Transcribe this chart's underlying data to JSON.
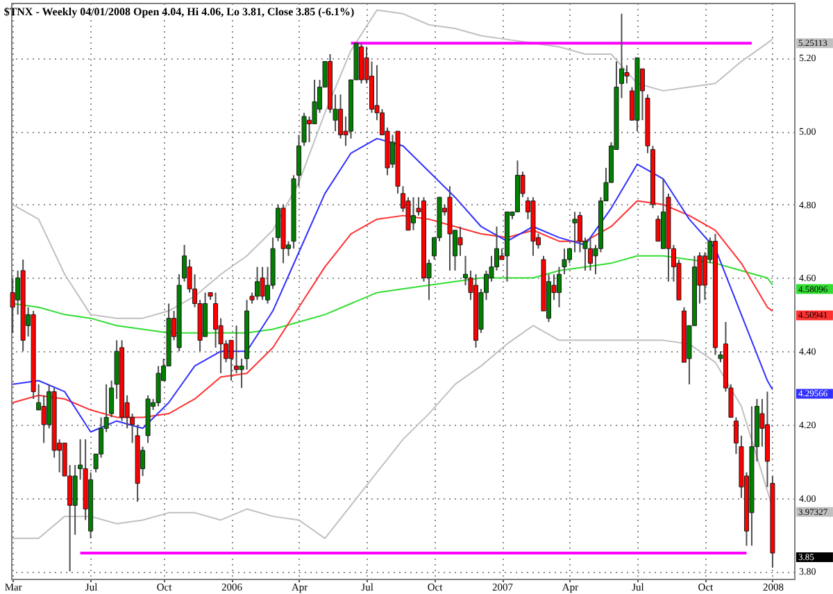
{
  "chart_data": {
    "type": "candlestick",
    "title": "$TNX - Weekly 04/01/2008 Open 4.04, Hi 4.06, Lo 3.81, Close 3.85 (-6.1%)",
    "series": [
      {
        "type": "line",
        "color": "#c0c0c0",
        "x": [
          "2005-03-18",
          "2005-04-22",
          "2005-05-27",
          "2005-07-01",
          "2005-08-05",
          "2005-09-09",
          "2005-10-14",
          "2005-11-18",
          "2005-12-23",
          "2006-01-27",
          "2006-03-03",
          "2006-04-07",
          "2006-05-12",
          "2006-06-16",
          "2006-07-21",
          "2006-08-25",
          "2006-09-29",
          "2006-11-03",
          "2006-12-08",
          "2007-01-12",
          "2007-02-16",
          "2007-03-23",
          "2007-04-27",
          "2007-06-01",
          "2007-07-06",
          "2007-08-10",
          "2007-09-14",
          "2007-10-19",
          "2007-11-23",
          "2007-12-28",
          "2008-01-04"
        ],
        "values": [
          4.8,
          4.76,
          4.61,
          4.5,
          4.49,
          4.49,
          4.51,
          4.55,
          4.61,
          4.66,
          4.73,
          4.86,
          5.05,
          5.22,
          5.33,
          5.32,
          5.29,
          5.28,
          5.26,
          5.25,
          5.24,
          5.23,
          5.21,
          5.21,
          5.13,
          5.11,
          5.12,
          5.13,
          5.19,
          5.24,
          5.25113
        ]
      },
      {
        "type": "line",
        "color": "#c0c0c0",
        "x": [
          "2005-03-18",
          "2005-04-22",
          "2005-05-27",
          "2005-07-01",
          "2005-08-05",
          "2005-09-09",
          "2005-10-14",
          "2005-11-18",
          "2005-12-23",
          "2006-01-27",
          "2006-03-03",
          "2006-04-07",
          "2006-05-12",
          "2006-06-16",
          "2006-07-21",
          "2006-08-25",
          "2006-09-29",
          "2006-11-03",
          "2006-12-08",
          "2007-01-12",
          "2007-02-16",
          "2007-03-23",
          "2007-04-27",
          "2007-06-01",
          "2007-07-06",
          "2007-08-10",
          "2007-09-14",
          "2007-10-19",
          "2007-11-23",
          "2007-12-28",
          "2008-01-04"
        ],
        "values": [
          3.89,
          3.89,
          3.95,
          3.95,
          3.93,
          3.94,
          3.96,
          3.96,
          3.94,
          3.97,
          3.95,
          3.94,
          3.89,
          3.98,
          4.07,
          4.16,
          4.23,
          4.31,
          4.36,
          4.42,
          4.47,
          4.43,
          4.43,
          4.43,
          4.43,
          4.43,
          4.42,
          4.37,
          4.25,
          4.02,
          3.97327
        ]
      },
      {
        "type": "line",
        "color": "#30dd30",
        "x": [
          "2005-03-18",
          "2005-04-22",
          "2005-05-27",
          "2005-07-01",
          "2005-08-05",
          "2005-09-09",
          "2005-10-14",
          "2005-11-18",
          "2005-12-23",
          "2006-01-27",
          "2006-03-03",
          "2006-04-07",
          "2006-05-12",
          "2006-06-16",
          "2006-07-21",
          "2006-08-25",
          "2006-09-29",
          "2006-11-03",
          "2006-12-08",
          "2007-01-12",
          "2007-02-16",
          "2007-03-23",
          "2007-04-27",
          "2007-06-01",
          "2007-07-06",
          "2007-08-10",
          "2007-09-14",
          "2007-10-19",
          "2007-11-23",
          "2007-12-28",
          "2008-01-04"
        ],
        "values": [
          4.53,
          4.52,
          4.5,
          4.49,
          4.47,
          4.46,
          4.45,
          4.45,
          4.45,
          4.45,
          4.46,
          4.48,
          4.5,
          4.53,
          4.56,
          4.57,
          4.58,
          4.59,
          4.6,
          4.6,
          4.6,
          4.62,
          4.63,
          4.64,
          4.66,
          4.66,
          4.65,
          4.64,
          4.62,
          4.6,
          4.58096
        ]
      },
      {
        "type": "line",
        "color": "#ff3030",
        "x": [
          "2005-03-18",
          "2005-04-22",
          "2005-05-27",
          "2005-07-01",
          "2005-08-05",
          "2005-09-09",
          "2005-10-14",
          "2005-11-18",
          "2005-12-23",
          "2006-01-27",
          "2006-03-03",
          "2006-04-07",
          "2006-05-12",
          "2006-06-16",
          "2006-07-21",
          "2006-08-25",
          "2006-09-29",
          "2006-11-03",
          "2006-12-08",
          "2007-01-12",
          "2007-02-16",
          "2007-03-23",
          "2007-04-27",
          "2007-06-01",
          "2007-07-06",
          "2007-08-10",
          "2007-09-14",
          "2007-10-19",
          "2007-11-23",
          "2007-12-28",
          "2008-01-04"
        ],
        "values": [
          4.26,
          4.28,
          4.27,
          4.24,
          4.22,
          4.22,
          4.23,
          4.27,
          4.33,
          4.34,
          4.41,
          4.52,
          4.63,
          4.72,
          4.76,
          4.77,
          4.76,
          4.74,
          4.72,
          4.71,
          4.73,
          4.7,
          4.7,
          4.74,
          4.81,
          4.8,
          4.77,
          4.73,
          4.64,
          4.52,
          4.50941
        ]
      },
      {
        "type": "line",
        "color": "#3030ff",
        "x": [
          "2005-03-18",
          "2005-04-22",
          "2005-05-27",
          "2005-07-01",
          "2005-08-05",
          "2005-09-09",
          "2005-10-14",
          "2005-11-18",
          "2005-12-23",
          "2006-01-27",
          "2006-03-03",
          "2006-04-07",
          "2006-05-12",
          "2006-06-16",
          "2006-07-21",
          "2006-08-25",
          "2006-09-29",
          "2006-11-03",
          "2006-12-08",
          "2007-01-12",
          "2007-02-16",
          "2007-03-23",
          "2007-04-27",
          "2007-06-01",
          "2007-07-06",
          "2007-08-10",
          "2007-09-14",
          "2007-10-19",
          "2007-11-23",
          "2007-12-28",
          "2008-01-04"
        ],
        "values": [
          4.31,
          4.32,
          4.29,
          4.18,
          4.21,
          4.19,
          4.26,
          4.36,
          4.4,
          4.4,
          4.51,
          4.67,
          4.83,
          4.94,
          4.98,
          4.96,
          4.89,
          4.82,
          4.74,
          4.7,
          4.74,
          4.71,
          4.69,
          4.79,
          4.91,
          4.87,
          4.76,
          4.68,
          4.5,
          4.32,
          4.29566
        ]
      },
      {
        "type": "line",
        "color": "#ff00ff",
        "x": [
          "2006-06-16",
          "2007-12-07"
        ],
        "values": [
          5.24,
          5.24
        ]
      },
      {
        "type": "line",
        "color": "#ff00ff",
        "x": [
          "2005-06-17",
          "2007-11-30"
        ],
        "values": [
          3.85,
          3.85
        ]
      },
      {
        "x": [
          "2005-03-18",
          "2005-03-25",
          "2005-04-01",
          "2005-04-08",
          "2005-04-15",
          "2005-04-22",
          "2005-04-29",
          "2005-05-06",
          "2005-05-13",
          "2005-05-20",
          "2005-05-27",
          "2005-06-03",
          "2005-06-10",
          "2005-06-17",
          "2005-06-24",
          "2005-07-01",
          "2005-07-08",
          "2005-07-15",
          "2005-07-22",
          "2005-07-29",
          "2005-08-05",
          "2005-08-12",
          "2005-08-19",
          "2005-08-26",
          "2005-09-02",
          "2005-09-09",
          "2005-09-16",
          "2005-09-23",
          "2005-09-30",
          "2005-10-07",
          "2005-10-14",
          "2005-10-21",
          "2005-10-28",
          "2005-11-04",
          "2005-11-11",
          "2005-11-18",
          "2005-11-25",
          "2005-12-02",
          "2005-12-09",
          "2005-12-16",
          "2005-12-23",
          "2005-12-30",
          "2006-01-06",
          "2006-01-13",
          "2006-01-20",
          "2006-01-27",
          "2006-02-03",
          "2006-02-10",
          "2006-02-17",
          "2006-02-24",
          "2006-03-03",
          "2006-03-10",
          "2006-03-17",
          "2006-03-24",
          "2006-03-31",
          "2006-04-07",
          "2006-04-14",
          "2006-04-21",
          "2006-04-28",
          "2006-05-05",
          "2006-05-12",
          "2006-05-19",
          "2006-05-26",
          "2006-06-02",
          "2006-06-09",
          "2006-06-16",
          "2006-06-23",
          "2006-06-30",
          "2006-07-07",
          "2006-07-14",
          "2006-07-21",
          "2006-07-28",
          "2006-08-04",
          "2006-08-11",
          "2006-08-18",
          "2006-08-25",
          "2006-09-01",
          "2006-09-08",
          "2006-09-15",
          "2006-09-22",
          "2006-09-29",
          "2006-10-06",
          "2006-10-13",
          "2006-10-20",
          "2006-10-27",
          "2006-11-03",
          "2006-11-10",
          "2006-11-17",
          "2006-11-24",
          "2006-12-01",
          "2006-12-08",
          "2006-12-15",
          "2006-12-22",
          "2006-12-29",
          "2007-01-05",
          "2007-01-12",
          "2007-01-19",
          "2007-01-26",
          "2007-02-02",
          "2007-02-09",
          "2007-02-16",
          "2007-02-23",
          "2007-03-02",
          "2007-03-09",
          "2007-03-16",
          "2007-03-23",
          "2007-03-30",
          "2007-04-06",
          "2007-04-13",
          "2007-04-20",
          "2007-04-27",
          "2007-05-04",
          "2007-05-11",
          "2007-05-18",
          "2007-05-25",
          "2007-06-01",
          "2007-06-08",
          "2007-06-15",
          "2007-06-22",
          "2007-06-29",
          "2007-07-06",
          "2007-07-13",
          "2007-07-20",
          "2007-07-27",
          "2007-08-03",
          "2007-08-10",
          "2007-08-17",
          "2007-08-24",
          "2007-08-31",
          "2007-09-07",
          "2007-09-14",
          "2007-09-21",
          "2007-09-28",
          "2007-10-05",
          "2007-10-12",
          "2007-10-19",
          "2007-10-26",
          "2007-11-02",
          "2007-11-09",
          "2007-11-16",
          "2007-11-23",
          "2007-11-30",
          "2007-12-07",
          "2007-12-14",
          "2007-12-21",
          "2007-12-28",
          "2008-01-04"
        ],
        "ohlc": [
          [
            4.56,
            4.6,
            4.45,
            4.52
          ],
          [
            4.54,
            4.62,
            4.5,
            4.6
          ],
          [
            4.62,
            4.65,
            4.4,
            4.43
          ],
          [
            4.47,
            4.52,
            4.44,
            4.5
          ],
          [
            4.5,
            4.51,
            4.27,
            4.29
          ],
          [
            4.24,
            4.31,
            4.24,
            4.26
          ],
          [
            4.25,
            4.28,
            4.15,
            4.2
          ],
          [
            4.2,
            4.31,
            4.19,
            4.29
          ],
          [
            4.29,
            4.3,
            4.11,
            4.13
          ],
          [
            4.15,
            4.16,
            4.07,
            4.13
          ],
          [
            4.15,
            4.15,
            4.06,
            4.06
          ],
          [
            4.06,
            4.09,
            3.8,
            3.98
          ],
          [
            3.98,
            4.09,
            3.9,
            4.06
          ],
          [
            4.08,
            4.16,
            4.05,
            4.09
          ],
          [
            4.08,
            4.16,
            3.94,
            3.97
          ],
          [
            3.91,
            4.07,
            3.89,
            4.05
          ],
          [
            4.08,
            4.12,
            4.07,
            4.12
          ],
          [
            4.12,
            4.22,
            4.11,
            4.19
          ],
          [
            4.19,
            4.31,
            4.18,
            4.22
          ],
          [
            4.23,
            4.32,
            4.22,
            4.3
          ],
          [
            4.31,
            4.43,
            4.27,
            4.4
          ],
          [
            4.41,
            4.43,
            4.21,
            4.22
          ],
          [
            4.26,
            4.28,
            4.19,
            4.22
          ],
          [
            4.22,
            4.23,
            4.15,
            4.2
          ],
          [
            4.17,
            4.2,
            3.99,
            4.04
          ],
          [
            4.08,
            4.14,
            4.06,
            4.13
          ],
          [
            4.17,
            4.28,
            4.15,
            4.27
          ],
          [
            4.25,
            4.27,
            4.24,
            4.26
          ],
          [
            4.26,
            4.36,
            4.25,
            4.34
          ],
          [
            4.32,
            4.38,
            4.32,
            4.36
          ],
          [
            4.36,
            4.53,
            4.36,
            4.49
          ],
          [
            4.49,
            4.51,
            4.43,
            4.44
          ],
          [
            4.41,
            4.61,
            4.4,
            4.58
          ],
          [
            4.6,
            4.69,
            4.59,
            4.66
          ],
          [
            4.63,
            4.65,
            4.56,
            4.57
          ],
          [
            4.57,
            4.61,
            4.52,
            4.53
          ],
          [
            4.53,
            4.54,
            4.4,
            4.43
          ],
          [
            4.44,
            4.56,
            4.44,
            4.53
          ],
          [
            4.56,
            4.56,
            4.54,
            4.55
          ],
          [
            4.53,
            4.56,
            4.41,
            4.46
          ],
          [
            4.47,
            4.49,
            4.34,
            4.42
          ],
          [
            4.42,
            4.43,
            4.37,
            4.38
          ],
          [
            4.43,
            4.43,
            4.32,
            4.38
          ],
          [
            4.36,
            4.47,
            4.34,
            4.35
          ],
          [
            4.35,
            4.38,
            4.3,
            4.36
          ],
          [
            4.38,
            4.54,
            4.35,
            4.51
          ],
          [
            4.55,
            4.56,
            4.53,
            4.54
          ],
          [
            4.55,
            4.63,
            4.54,
            4.59
          ],
          [
            4.6,
            4.63,
            4.54,
            4.55
          ],
          [
            4.54,
            4.63,
            4.53,
            4.58
          ],
          [
            4.58,
            4.71,
            4.57,
            4.68
          ],
          [
            4.71,
            4.8,
            4.7,
            4.79
          ],
          [
            4.79,
            4.8,
            4.64,
            4.68
          ],
          [
            4.68,
            4.7,
            4.66,
            4.69
          ],
          [
            4.7,
            4.88,
            4.68,
            4.87
          ],
          [
            4.88,
            4.99,
            4.85,
            4.96
          ],
          [
            4.97,
            5.05,
            4.96,
            5.04
          ],
          [
            5.03,
            5.04,
            4.97,
            5.02
          ],
          [
            5.02,
            5.14,
            5.02,
            5.08
          ],
          [
            5.06,
            5.14,
            5.05,
            5.12
          ],
          [
            5.12,
            5.19,
            5.12,
            5.19
          ],
          [
            5.19,
            5.21,
            5.05,
            5.06
          ],
          [
            5.03,
            5.1,
            5.0,
            5.06
          ],
          [
            5.06,
            5.1,
            4.98,
            4.99
          ],
          [
            5.0,
            5.04,
            4.96,
            4.99
          ],
          [
            5.0,
            5.14,
            4.98,
            5.14
          ],
          [
            5.14,
            5.24,
            5.14,
            5.24
          ],
          [
            5.23,
            5.24,
            5.13,
            5.14
          ],
          [
            5.2,
            5.23,
            5.13,
            5.14
          ],
          [
            5.15,
            5.19,
            5.05,
            5.06
          ],
          [
            5.07,
            5.18,
            5.03,
            5.05
          ],
          [
            5.05,
            5.06,
            4.99,
            4.99
          ],
          [
            5.0,
            5.01,
            4.88,
            4.9
          ],
          [
            4.91,
            4.99,
            4.9,
            4.97
          ],
          [
            5.0,
            5.0,
            4.83,
            4.85
          ],
          [
            4.83,
            4.85,
            4.78,
            4.79
          ],
          [
            4.81,
            4.82,
            4.73,
            4.73
          ],
          [
            4.75,
            4.82,
            4.73,
            4.77
          ],
          [
            4.79,
            4.82,
            4.77,
            4.78
          ],
          [
            4.81,
            4.82,
            4.59,
            4.6
          ],
          [
            4.6,
            4.65,
            4.54,
            4.64
          ],
          [
            4.66,
            4.71,
            4.65,
            4.71
          ],
          [
            4.71,
            4.82,
            4.7,
            4.82
          ],
          [
            4.79,
            4.8,
            4.77,
            4.78
          ],
          [
            4.82,
            4.85,
            4.62,
            4.72
          ],
          [
            4.66,
            4.73,
            4.62,
            4.73
          ],
          [
            4.71,
            4.74,
            4.66,
            4.69
          ],
          [
            4.6,
            4.66,
            4.58,
            4.61
          ],
          [
            4.6,
            4.62,
            4.54,
            4.56
          ],
          [
            4.58,
            4.61,
            4.41,
            4.43
          ],
          [
            4.46,
            4.57,
            4.45,
            4.56
          ],
          [
            4.56,
            4.62,
            4.54,
            4.61
          ],
          [
            4.6,
            4.66,
            4.59,
            4.63
          ],
          [
            4.63,
            4.74,
            4.62,
            4.68
          ],
          [
            4.66,
            4.68,
            4.65,
            4.65
          ],
          [
            4.66,
            4.78,
            4.59,
            4.78
          ],
          [
            4.77,
            4.78,
            4.76,
            4.78
          ],
          [
            4.78,
            4.92,
            4.78,
            4.88
          ],
          [
            4.88,
            4.89,
            4.82,
            4.83
          ],
          [
            4.81,
            4.82,
            4.76,
            4.78
          ],
          [
            4.81,
            4.82,
            4.66,
            4.7
          ],
          [
            4.71,
            4.72,
            4.68,
            4.69
          ],
          [
            4.65,
            4.66,
            4.51,
            4.51
          ],
          [
            4.49,
            4.61,
            4.48,
            4.59
          ],
          [
            4.58,
            4.61,
            4.54,
            4.56
          ],
          [
            4.56,
            4.63,
            4.52,
            4.61
          ],
          [
            4.63,
            4.68,
            4.61,
            4.65
          ],
          [
            4.65,
            4.68,
            4.64,
            4.68
          ],
          [
            4.75,
            4.78,
            4.67,
            4.76
          ],
          [
            4.77,
            4.78,
            4.67,
            4.7
          ],
          [
            4.68,
            4.71,
            4.62,
            4.7
          ],
          [
            4.68,
            4.71,
            4.62,
            4.64
          ],
          [
            4.66,
            4.69,
            4.61,
            4.68
          ],
          [
            4.68,
            4.82,
            4.67,
            4.81
          ],
          [
            4.81,
            4.9,
            4.81,
            4.86
          ],
          [
            4.86,
            4.97,
            4.86,
            4.96
          ],
          [
            4.95,
            5.19,
            4.95,
            5.12
          ],
          [
            5.13,
            5.32,
            5.09,
            5.17
          ],
          [
            5.16,
            5.18,
            5.13,
            5.15
          ],
          [
            5.11,
            5.12,
            5.03,
            5.03
          ],
          [
            5.03,
            5.2,
            5.0,
            5.2
          ],
          [
            5.17,
            5.17,
            5.03,
            5.11
          ],
          [
            5.09,
            5.1,
            4.94,
            4.96
          ],
          [
            4.95,
            4.96,
            4.79,
            4.8
          ],
          [
            4.76,
            4.77,
            4.7,
            4.7
          ],
          [
            4.68,
            4.87,
            4.68,
            4.78
          ],
          [
            4.82,
            4.83,
            4.59,
            4.68
          ],
          [
            4.68,
            4.69,
            4.59,
            4.63
          ],
          [
            4.64,
            4.65,
            4.54,
            4.54
          ],
          [
            4.51,
            4.52,
            4.37,
            4.37
          ],
          [
            4.38,
            4.47,
            4.31,
            4.47
          ],
          [
            4.47,
            4.66,
            4.47,
            4.63
          ],
          [
            4.66,
            4.67,
            4.53,
            4.58
          ],
          [
            4.66,
            4.67,
            4.54,
            4.58
          ],
          [
            4.65,
            4.71,
            4.64,
            4.7
          ],
          [
            4.7,
            4.72,
            4.39,
            4.41
          ],
          [
            4.38,
            4.4,
            4.37,
            4.39
          ],
          [
            4.42,
            4.48,
            4.29,
            4.3
          ],
          [
            4.3,
            4.31,
            4.22,
            4.22
          ],
          [
            4.21,
            4.22,
            4.12,
            4.15
          ],
          [
            4.14,
            4.17,
            4.0,
            4.03
          ],
          [
            4.06,
            4.07,
            3.87,
            3.91
          ],
          [
            3.96,
            4.25,
            3.87,
            4.14
          ],
          [
            4.14,
            4.27,
            4.1,
            4.25
          ],
          [
            4.23,
            4.27,
            4.14,
            4.19
          ],
          [
            4.2,
            4.29,
            4.03,
            4.1
          ],
          [
            4.04,
            4.06,
            3.81,
            3.85
          ]
        ],
        "colors": [
          "#ff0000",
          "#008000",
          "#ff0000",
          "#008000",
          "#ff0000",
          "#008000",
          "#ff0000",
          "#008000",
          "#ff0000",
          "#ff0000",
          "#ff0000",
          "#ff0000",
          "#008000",
          "#008000",
          "#ff0000",
          "#008000",
          "#008000",
          "#008000",
          "#008000",
          "#008000",
          "#008000",
          "#ff0000",
          "#ff0000",
          "#ff0000",
          "#ff0000",
          "#008000",
          "#008000",
          "#008000",
          "#008000",
          "#008000",
          "#008000",
          "#ff0000",
          "#008000",
          "#008000",
          "#ff0000",
          "#ff0000",
          "#ff0000",
          "#008000",
          "#ff0000",
          "#ff0000",
          "#ff0000",
          "#ff0000",
          "#ff0000",
          "#ff0000",
          "#008000",
          "#008000",
          "#ff0000",
          "#008000",
          "#ff0000",
          "#008000",
          "#008000",
          "#008000",
          "#ff0000",
          "#008000",
          "#008000",
          "#008000",
          "#008000",
          "#ff0000",
          "#008000",
          "#008000",
          "#008000",
          "#ff0000",
          "#008000",
          "#ff0000",
          "#ff0000",
          "#008000",
          "#008000",
          "#ff0000",
          "#ff0000",
          "#ff0000",
          "#ff0000",
          "#ff0000",
          "#ff0000",
          "#008000",
          "#ff0000",
          "#ff0000",
          "#ff0000",
          "#008000",
          "#ff0000",
          "#ff0000",
          "#008000",
          "#008000",
          "#008000",
          "#ff0000",
          "#ff0000",
          "#008000",
          "#ff0000",
          "#008000",
          "#ff0000",
          "#ff0000",
          "#008000",
          "#008000",
          "#008000",
          "#008000",
          "#ff0000",
          "#008000",
          "#008000",
          "#008000",
          "#ff0000",
          "#ff0000",
          "#ff0000",
          "#ff0000",
          "#ff0000",
          "#008000",
          "#ff0000",
          "#008000",
          "#008000",
          "#008000",
          "#008000",
          "#ff0000",
          "#008000",
          "#ff0000",
          "#008000",
          "#008000",
          "#008000",
          "#008000",
          "#008000",
          "#008000",
          "#ff0000",
          "#ff0000",
          "#008000",
          "#ff0000",
          "#ff0000",
          "#ff0000",
          "#ff0000",
          "#008000",
          "#ff0000",
          "#ff0000",
          "#ff0000",
          "#ff0000",
          "#008000",
          "#008000",
          "#ff0000",
          "#ff0000",
          "#008000",
          "#ff0000",
          "#008000",
          "#ff0000",
          "#ff0000",
          "#ff0000",
          "#ff0000",
          "#ff0000",
          "#008000",
          "#008000",
          "#ff0000",
          "#ff0000",
          "#ff0000"
        ]
      }
    ],
    "annotations": [
      {
        "text": "5.25113",
        "x": "2008-01-04",
        "y": 5.25113
      },
      {
        "text": "4.58096",
        "x": "2008-01-04",
        "y": 4.58096
      },
      {
        "text": "4.50941",
        "x": "2008-01-04",
        "y": 4.50941
      },
      {
        "text": "4.29566",
        "x": "2008-01-04",
        "y": 4.29566
      },
      {
        "text": "3.97327",
        "x": "2008-01-04",
        "y": 3.97327
      },
      {
        "text": "3.85",
        "x": "2008-01-04",
        "y": 3.85
      }
    ],
    "xlim": [
      "2005-03-16",
      "2008-02-02"
    ],
    "xticks": [
      {
        "value": "2005-03-18",
        "label": "Mar"
      },
      {
        "value": "2005-07-01",
        "label": "Jul"
      },
      {
        "value": "2005-10-07",
        "label": "Oct"
      },
      {
        "value": "2006-01-06",
        "label": "2006"
      },
      {
        "value": "2006-04-07",
        "label": "Apr"
      },
      {
        "value": "2006-07-07",
        "label": "Jul"
      },
      {
        "value": "2006-10-06",
        "label": "Oct"
      },
      {
        "value": "2007-01-05",
        "label": "2007"
      },
      {
        "value": "2007-04-06",
        "label": "Apr"
      },
      {
        "value": "2007-07-06",
        "label": "Jul"
      },
      {
        "value": "2007-10-05",
        "label": "Oct"
      },
      {
        "value": "2008-01-04",
        "label": "2008"
      }
    ],
    "ylim": [
      3.78,
      5.35
    ],
    "yticks": [
      {
        "value": 3.8,
        "label": "3.80"
      },
      {
        "value": 4.0,
        "label": "4.00"
      },
      {
        "value": 4.2,
        "label": "4.20"
      },
      {
        "value": 4.4,
        "label": "4.40"
      },
      {
        "value": 4.6,
        "label": "4.60"
      },
      {
        "value": 4.8,
        "label": "4.80"
      },
      {
        "value": 5.0,
        "label": "5.00"
      },
      {
        "value": 5.2,
        "label": "5.20"
      }
    ],
    "grid": true
  }
}
